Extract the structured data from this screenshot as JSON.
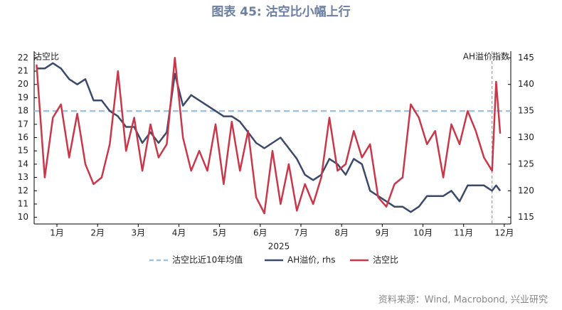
{
  "chart_data": {
    "type": "line",
    "title": "图表 45: 沽空比小幅上行",
    "xlabel": "2025",
    "ylabel": "沽空比",
    "y2label": "AH溢价指数",
    "source": "资料来源：Wind, Macrobond, 兴业研究",
    "x": [
      1.0,
      1.2,
      1.4,
      1.6,
      1.8,
      2.0,
      2.2,
      2.4,
      2.6,
      2.8,
      3.0,
      3.2,
      3.4,
      3.6,
      3.8,
      4.0,
      4.2,
      4.4,
      4.6,
      4.8,
      5.0,
      5.2,
      5.4,
      5.6,
      5.8,
      6.0,
      6.2,
      6.4,
      6.6,
      6.8,
      7.0,
      7.2,
      7.4,
      7.6,
      7.8,
      8.0,
      8.2,
      8.4,
      8.6,
      8.8,
      9.0,
      9.2,
      9.4,
      9.6,
      9.8,
      10.0,
      10.2,
      10.4,
      10.6,
      10.8,
      11.0,
      11.2,
      11.4,
      11.6,
      11.8,
      12.0,
      12.2,
      12.3,
      12.4
    ],
    "xlim": [
      0.94,
      12.66
    ],
    "xticks": [
      {
        "value": 1.5,
        "label": "1月"
      },
      {
        "value": 2.5,
        "label": "2月"
      },
      {
        "value": 3.5,
        "label": "3月"
      },
      {
        "value": 4.5,
        "label": "4月"
      },
      {
        "value": 5.5,
        "label": "5月"
      },
      {
        "value": 6.5,
        "label": "6月"
      },
      {
        "value": 7.5,
        "label": "7月"
      },
      {
        "value": 8.5,
        "label": "8月"
      },
      {
        "value": 9.5,
        "label": "9月"
      },
      {
        "value": 10.5,
        "label": "10月"
      },
      {
        "value": 11.5,
        "label": "11月"
      },
      {
        "value": 12.5,
        "label": "12月"
      }
    ],
    "ylim": [
      9.5,
      22.5
    ],
    "yticks": [
      10,
      11,
      12,
      13,
      14,
      15,
      16,
      17,
      18,
      19,
      20,
      21,
      22
    ],
    "y2lim": [
      113.75,
      146.25
    ],
    "y2ticks": [
      115,
      120,
      125,
      130,
      135,
      140,
      145
    ],
    "vline_x": 12.2,
    "series": [
      {
        "name": "沽空比近10年均值",
        "color": "#9ec3e0",
        "value": 18,
        "style": "dashed"
      },
      {
        "name": "AH溢价, rhs",
        "color": "#3b4a6b",
        "axis": "y2",
        "values": [
          143,
          143,
          144,
          143,
          141,
          140,
          141,
          137,
          137,
          135,
          134,
          132,
          132,
          129,
          131,
          129,
          131,
          142,
          136,
          138,
          137,
          136,
          135,
          134,
          134,
          133,
          131,
          129,
          128,
          129,
          130,
          128,
          126,
          123,
          122,
          123,
          126,
          125,
          123,
          126,
          125,
          120,
          119,
          118,
          117,
          117,
          116,
          117,
          119,
          119,
          119,
          120,
          118,
          121,
          121,
          121,
          120,
          121,
          120
        ]
      },
      {
        "name": "沽空比",
        "color": "#c8384a",
        "values": [
          21.5,
          13.0,
          17.5,
          18.5,
          14.5,
          17.8,
          14.0,
          12.5,
          13.0,
          15.5,
          21.0,
          15.0,
          17.5,
          13.5,
          17.0,
          14.5,
          15.5,
          22.0,
          16.0,
          13.5,
          15.0,
          13.5,
          17.0,
          12.5,
          17.2,
          13.5,
          16.5,
          11.5,
          10.3,
          15.0,
          11.0,
          14.0,
          10.5,
          12.5,
          11.0,
          13.0,
          17.5,
          13.5,
          14.0,
          16.5,
          14.5,
          15.5,
          11.5,
          10.8,
          12.5,
          13.0,
          18.5,
          17.5,
          15.5,
          16.5,
          13.0,
          17.0,
          15.5,
          18.0,
          16.5,
          14.5,
          13.5,
          20.2,
          16.3
        ]
      }
    ]
  }
}
